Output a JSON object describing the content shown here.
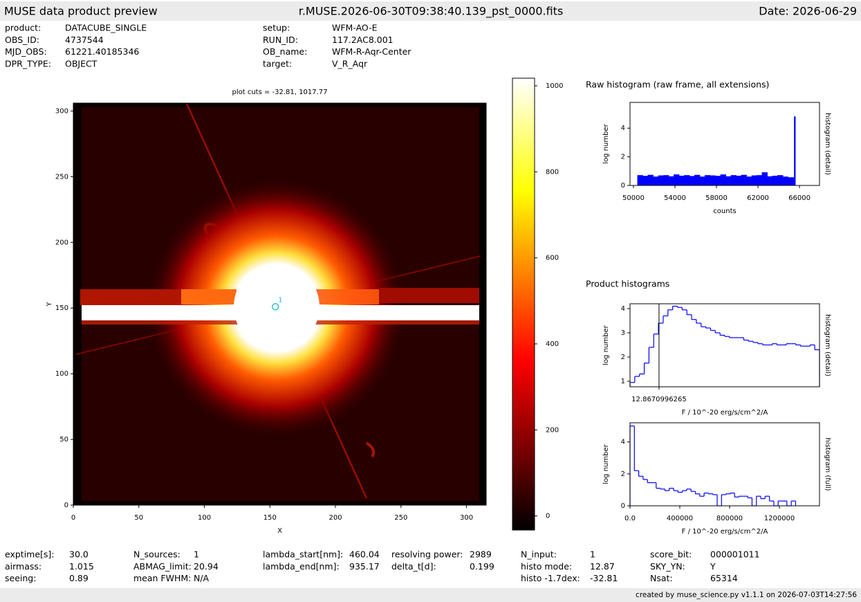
{
  "header": {
    "title": "MUSE data product preview",
    "filename": "r.MUSE.2026-06-30T09:38:40.139_pst_0000.fits",
    "date": "Date: 2026-06-29"
  },
  "info_top": [
    [
      {
        "label": "product:",
        "value": "DATACUBE_SINGLE"
      },
      {
        "label": "OBS_ID:",
        "value": "4737544"
      },
      {
        "label": "MJD_OBS:",
        "value": "61221.40185346"
      },
      {
        "label": "DPR_TYPE:",
        "value": "OBJECT"
      }
    ],
    [
      {
        "label": "setup:",
        "value": "WFM-AO-E"
      },
      {
        "label": "RUN_ID:",
        "value": "117.2AC8.001"
      },
      {
        "label": "OB_name:",
        "value": "WFM-R-Aqr-Center"
      },
      {
        "label": "target:",
        "value": "V_R_Aqr"
      }
    ]
  ],
  "chart_data": [
    {
      "type": "image",
      "title": "plot cuts = -32.81, 1017.77",
      "xlabel": "X",
      "ylabel": "Y",
      "xlim": [
        0,
        315
      ],
      "ylim": [
        0,
        306
      ],
      "xticks": [
        0,
        50,
        100,
        150,
        200,
        250,
        300
      ],
      "yticks": [
        0,
        50,
        100,
        150,
        200,
        250,
        300
      ],
      "clim": [
        -32.81,
        1017.77
      ],
      "cticks": [
        0,
        200,
        400,
        600,
        800,
        1000
      ],
      "markers": [
        {
          "label": "1",
          "x": 154.2,
          "y": 151,
          "color": "#17becf"
        }
      ]
    },
    {
      "type": "histogram",
      "histtype": "bar",
      "title": "Raw histogram (raw frame, all extensions)",
      "xlabel": "counts",
      "ylabel": "log number",
      "ylabel_right": "histogram (detail)",
      "color": "#0000ff",
      "xlim": [
        49670,
        67930
      ],
      "ylim": [
        0,
        5.8
      ],
      "xticks": [
        50000,
        54000,
        58000,
        62000,
        66000
      ],
      "yticks": [
        0,
        2,
        4
      ],
      "bins": [
        50400,
        50900,
        51400,
        51900,
        52400,
        52900,
        53400,
        53900,
        54400,
        54900,
        55400,
        55900,
        56400,
        56900,
        57400,
        57900,
        58400,
        58900,
        59400,
        59900,
        60400,
        60900,
        61400,
        61900,
        62400,
        62900,
        63400,
        63900,
        64400,
        64900,
        65500,
        65600
      ],
      "counts": [
        0.7,
        0.65,
        0.72,
        0.6,
        0.68,
        0.7,
        0.62,
        0.75,
        0.66,
        0.7,
        0.64,
        0.72,
        0.6,
        0.7,
        0.68,
        0.65,
        0.75,
        0.62,
        0.7,
        0.66,
        0.72,
        0.6,
        0.68,
        0.7,
        0.9,
        0.62,
        0.66,
        0.7,
        0.6,
        0.55,
        4.8
      ]
    },
    {
      "type": "histogram",
      "histtype": "step",
      "title": "Product histograms",
      "xlabel": "F / 10^-20 erg/s/cm^2/A",
      "ylabel": "log number",
      "ylabel_right": "histogram (detail)",
      "color": "#0000ff",
      "xlim": [
        -30,
        250
      ],
      "ylim": [
        0.77,
        4.2
      ],
      "xticks": [
        12.8670996265
      ],
      "yticks": [
        1,
        2,
        3,
        4
      ],
      "vline": 12.8670996265,
      "bins": [
        -30,
        -23,
        -16,
        -9,
        -2,
        5,
        12,
        19,
        26,
        33,
        40,
        47,
        54,
        61,
        68,
        75,
        82,
        89,
        96,
        103,
        110,
        117,
        124,
        131,
        138,
        145,
        152,
        159,
        166,
        173,
        180,
        187,
        194,
        201,
        208,
        215,
        222,
        229,
        236,
        243,
        250
      ],
      "counts": [
        0.95,
        1.2,
        1.3,
        1.75,
        2.4,
        2.95,
        3.4,
        3.7,
        3.95,
        4.1,
        4.05,
        3.95,
        3.75,
        3.55,
        3.4,
        3.25,
        3.2,
        3.1,
        3.0,
        2.9,
        2.85,
        2.8,
        2.8,
        2.8,
        2.7,
        2.65,
        2.6,
        2.55,
        2.5,
        2.5,
        2.55,
        2.5,
        2.5,
        2.55,
        2.55,
        2.5,
        2.45,
        2.45,
        2.5,
        2.3
      ]
    },
    {
      "type": "histogram",
      "histtype": "step",
      "xlabel": "F / 10^-20 erg/s/cm^2/A",
      "ylabel": "log number",
      "ylabel_right": "histogram (full)",
      "color": "#0000ff",
      "xlim": [
        0,
        1522000
      ],
      "ylim": [
        0,
        5.2
      ],
      "xticks": [
        {
          "value": 0,
          "label": "0.0"
        },
        400000,
        800000,
        1200000
      ],
      "yticks": [
        0,
        2,
        4
      ],
      "bins": [
        0,
        35000,
        70000,
        105000,
        140000,
        175000,
        210000,
        245000,
        280000,
        315000,
        350000,
        385000,
        420000,
        455000,
        490000,
        525000,
        560000,
        595000,
        630000,
        665000,
        700000,
        735000,
        770000,
        805000,
        840000,
        875000,
        910000,
        945000,
        980000,
        1015000,
        1050000,
        1085000,
        1120000,
        1155000,
        1190000,
        1225000,
        1260000,
        1295000,
        1330000
      ],
      "counts": [
        5.0,
        2.2,
        1.85,
        1.65,
        1.45,
        1.45,
        1.1,
        1.05,
        0.95,
        1.1,
        0.95,
        0.85,
        0.95,
        1.05,
        0.9,
        0.75,
        0.6,
        0.8,
        0.75,
        0.7,
        0,
        0.7,
        0.75,
        0.8,
        0.55,
        0.6,
        0.6,
        0.5,
        0,
        0.6,
        0.45,
        0.6,
        0.3,
        0,
        0.3,
        0.3,
        0,
        0.3
      ]
    }
  ],
  "info_bottom": [
    [
      {
        "label": "exptime[s]:",
        "value": "30.0"
      },
      {
        "label": "airmass:",
        "value": "1.015"
      },
      {
        "label": "seeing:",
        "value": "0.89"
      }
    ],
    [
      {
        "label": "N_sources:",
        "value": "1"
      },
      {
        "label": "ABMAG_limit:",
        "value": "20.94"
      },
      {
        "label": "mean FWHM:",
        "value": "N/A"
      }
    ],
    [
      {
        "label": "lambda_start[nm]:",
        "value": "460.04"
      },
      {
        "label": "lambda_end[nm]:",
        "value": "935.17"
      }
    ],
    [
      {
        "label": "resolving power:",
        "value": "2989"
      },
      {
        "label": "delta_t[d]:",
        "value": "0.199"
      }
    ],
    [
      {
        "label": "N_input:",
        "value": "1"
      },
      {
        "label": "histo mode:",
        "value": "12.87"
      },
      {
        "label": "histo -1.7dex:",
        "value": "-32.81"
      }
    ],
    [
      {
        "label": "score_bit:",
        "value": "000001011"
      },
      {
        "label": "SKY_YN:",
        "value": "Y"
      },
      {
        "label": "Nsat:",
        "value": "65314"
      }
    ]
  ],
  "footer": "created by muse_science.py v1.1.1 on 2026-07-03T14:27:56"
}
